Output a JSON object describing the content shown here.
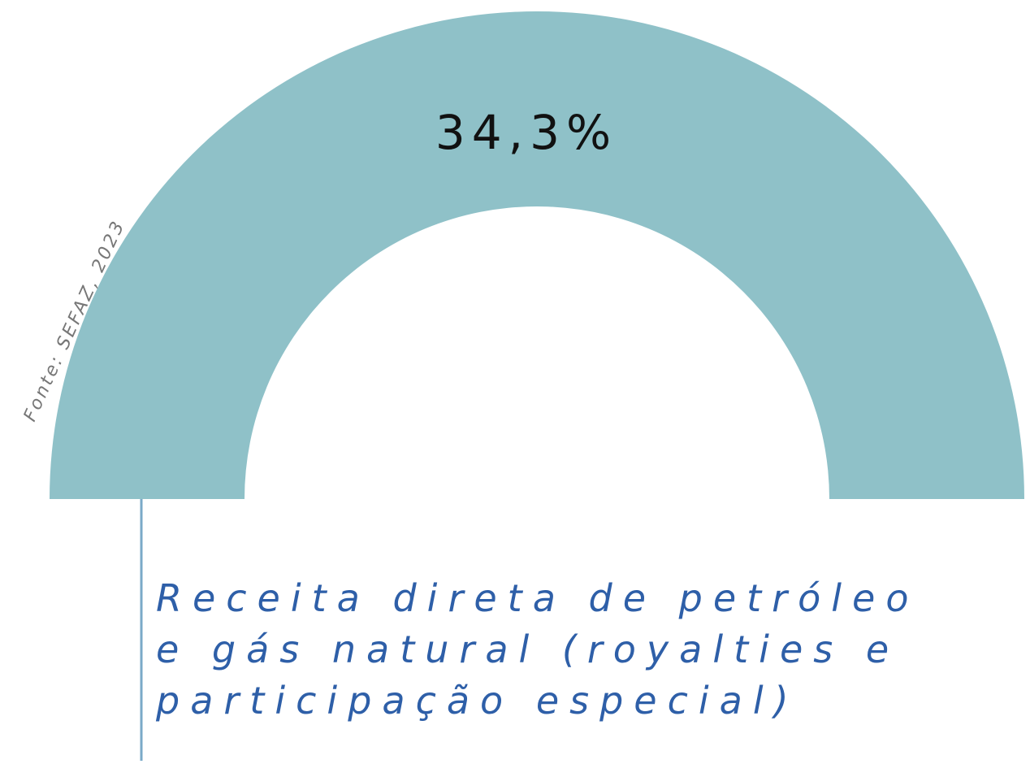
{
  "value_label": "34,3%",
  "source": "Fonte: SEFAZ, 2023",
  "description": [
    "Receita direta de petróleo",
    "e gás natural (royalties e",
    "participação especial)"
  ]
}
